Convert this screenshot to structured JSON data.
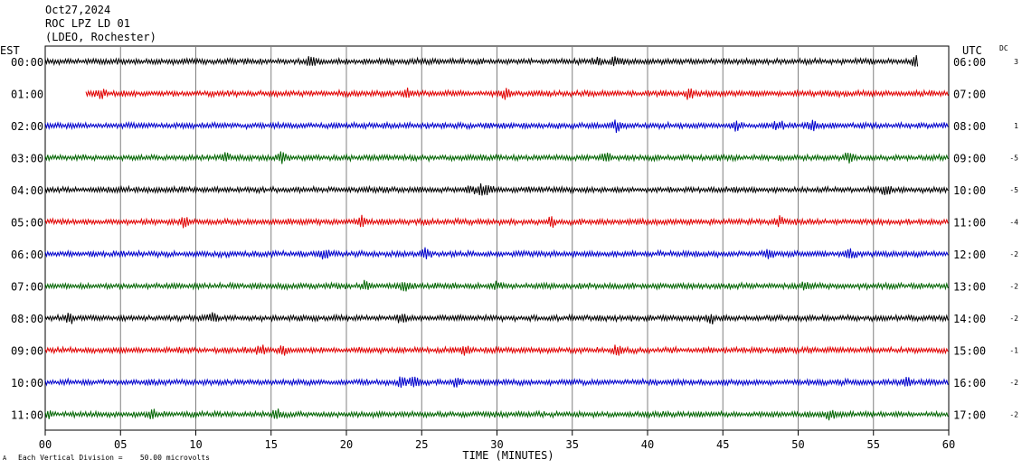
{
  "header": {
    "date": "Oct27,2024",
    "station": "ROC LPZ LD 01",
    "network": "(LDEO, Rochester)"
  },
  "left_zone_label": "EST",
  "right_zone_label": "UTC",
  "dc_label": "DC",
  "footer": {
    "vertical_division": "Each Vertical Division =    50.00 microvolts"
  },
  "chart_data": {
    "type": "line",
    "title": "",
    "xlabel": "TIME (MINUTES)",
    "ylabel": "",
    "xlim": [
      0,
      60
    ],
    "x_ticks": [
      "00",
      "05",
      "10",
      "15",
      "20",
      "25",
      "30",
      "35",
      "40",
      "45",
      "50",
      "55",
      "60"
    ],
    "grid": true,
    "trace_colors": [
      "#000000",
      "#e00000",
      "#0000cc",
      "#006400"
    ],
    "rows": [
      {
        "est": "00:00",
        "utc": "06:00",
        "dc": "3",
        "start_min": 0,
        "end_min": 58.0
      },
      {
        "est": "01:00",
        "utc": "07:00",
        "dc": "",
        "start_min": 2.7,
        "end_min": 60
      },
      {
        "est": "02:00",
        "utc": "08:00",
        "dc": "1",
        "start_min": 0,
        "end_min": 60
      },
      {
        "est": "03:00",
        "utc": "09:00",
        "dc": "-5",
        "start_min": 0,
        "end_min": 60
      },
      {
        "est": "04:00",
        "utc": "10:00",
        "dc": "-5",
        "start_min": 0,
        "end_min": 60
      },
      {
        "est": "05:00",
        "utc": "11:00",
        "dc": "-4",
        "start_min": 0,
        "end_min": 60
      },
      {
        "est": "06:00",
        "utc": "12:00",
        "dc": "-2",
        "start_min": 0,
        "end_min": 60
      },
      {
        "est": "07:00",
        "utc": "13:00",
        "dc": "-2",
        "start_min": 0,
        "end_min": 60
      },
      {
        "est": "08:00",
        "utc": "14:00",
        "dc": "-2",
        "start_min": 0,
        "end_min": 60
      },
      {
        "est": "09:00",
        "utc": "15:00",
        "dc": "-1",
        "start_min": 0,
        "end_min": 60
      },
      {
        "est": "10:00",
        "utc": "16:00",
        "dc": "-2",
        "start_min": 0,
        "end_min": 60
      },
      {
        "est": "11:00",
        "utc": "17:00",
        "dc": "-2",
        "start_min": 0,
        "end_min": 60
      }
    ]
  }
}
